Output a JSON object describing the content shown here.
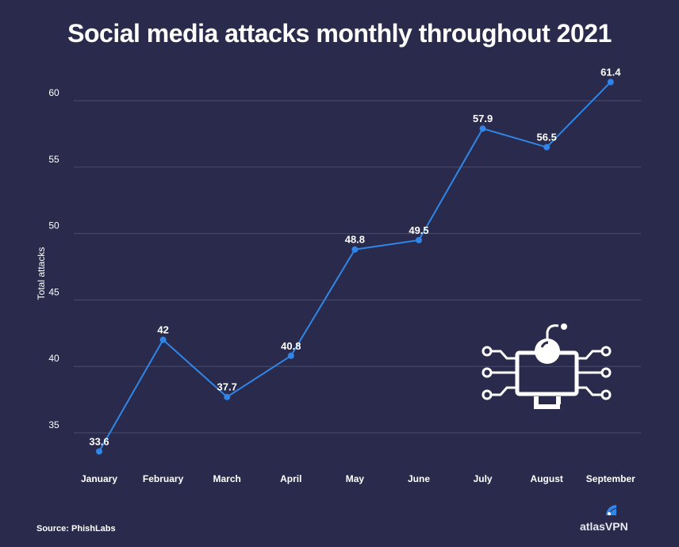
{
  "chart_data": {
    "type": "line",
    "title": "Social media attacks monthly throughout 2021",
    "xlabel": "",
    "ylabel": "Total attacks",
    "categories": [
      "January",
      "February",
      "March",
      "April",
      "May",
      "June",
      "July",
      "August",
      "September"
    ],
    "values": [
      33.6,
      42,
      37.7,
      40.8,
      48.8,
      49.5,
      57.9,
      56.5,
      61.4
    ],
    "data_labels": [
      "33.6",
      "42",
      "37.7",
      "40.8",
      "48.8",
      "49.5",
      "57.9",
      "56.5",
      "61.4"
    ],
    "yticks": [
      35,
      40,
      45,
      50,
      55,
      60
    ],
    "ylim": [
      35,
      60
    ],
    "grid": true,
    "legend": "none",
    "line_color": "#2f86e8"
  },
  "footer": {
    "source": "Source: PhishLabs",
    "brand": "atlasVPN"
  },
  "icons": {
    "illustration": "monitor-bomb-circuit-icon",
    "logo": "atlasvpn-logo-icon"
  }
}
